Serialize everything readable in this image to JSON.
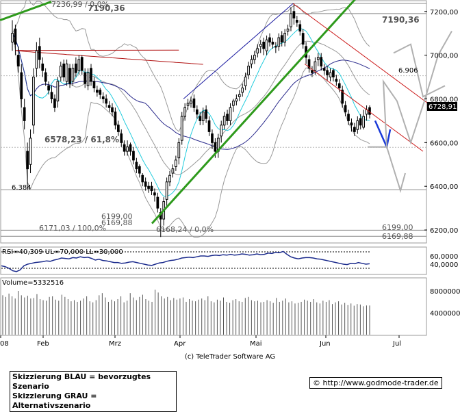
{
  "chart_data": {
    "type": "candlestick",
    "main": {
      "x_months": [
        "08",
        "Feb",
        "Mrz",
        "Apr",
        "Mai",
        "Jun",
        "Jul"
      ],
      "y_ticks": [
        "7200,00",
        "7000,00",
        "6800,00",
        "6600,00",
        "6400,00",
        "6200,00"
      ],
      "ylim": [
        6150,
        7240
      ],
      "last_price_label": "6728,91",
      "levels": [
        {
          "value": 7236.99,
          "label": "7236,99 / 0,0%"
        },
        {
          "value": 7190.36,
          "label": "7190,36"
        },
        {
          "value": 7190.36,
          "label": "7190,36"
        },
        {
          "value": 6906,
          "label": "6.906"
        },
        {
          "value": 6578.23,
          "label": "6578,23 / 61,8%"
        },
        {
          "value": 6384,
          "label": "6.384"
        },
        {
          "value": 6199,
          "label": "6199,00"
        },
        {
          "value": 6171.03,
          "label": "6171,03 / 100,0%"
        },
        {
          "value": 6169.88,
          "label": "6169,88"
        },
        {
          "value": 6168.24,
          "label": "6168,24 / 0,0%"
        },
        {
          "value": 6199,
          "label": "6199,00"
        },
        {
          "value": 6169.88,
          "label": "6169,88"
        }
      ],
      "candles_close": [
        7100,
        7050,
        6950,
        6800,
        6700,
        6480,
        6620,
        6900,
        7020,
        6980,
        6930,
        6880,
        6840,
        6800,
        6760,
        6880,
        6950,
        6900,
        6960,
        6870,
        6940,
        6920,
        6980,
        6930,
        6870,
        6920,
        6880,
        6850,
        6830,
        6820,
        6800,
        6780,
        6760,
        6740,
        6680,
        6650,
        6600,
        6560,
        6580,
        6560,
        6520,
        6480,
        6460,
        6420,
        6400,
        6390,
        6380,
        6360,
        6300,
        6250,
        6330,
        6420,
        6450,
        6480,
        6520,
        6600,
        6720,
        6760,
        6780,
        6790,
        6760,
        6730,
        6700,
        6740,
        6710,
        6650,
        6600,
        6560,
        6620,
        6680,
        6720,
        6700,
        6760,
        6790,
        6800,
        6820,
        6850,
        6900,
        6950,
        6980,
        7000,
        7030,
        7050,
        7030,
        7070,
        7060,
        7050,
        7040,
        7080,
        7060,
        7100,
        7120,
        7190,
        7170,
        7150,
        7110,
        7050,
        6990,
        6940,
        6920,
        6970,
        6990,
        6950,
        6930,
        6910,
        6920,
        6900,
        6880,
        6850,
        6780,
        6740,
        6700,
        6680,
        6650,
        6700,
        6680,
        6720,
        6750,
        6729
      ],
      "candles_open": [
        7060,
        7120,
        7000,
        6920,
        6760,
        6560,
        6500,
        6680,
        6940,
        7040,
        6960,
        6920,
        6860,
        6830,
        6800,
        6790,
        6900,
        6960,
        6880,
        6940,
        6880,
        6960,
        6930,
        6990,
        6920,
        6860,
        6940,
        6880,
        6840,
        6840,
        6810,
        6800,
        6770,
        6760,
        6740,
        6680,
        6640,
        6590,
        6560,
        6590,
        6560,
        6510,
        6490,
        6450,
        6420,
        6400,
        6400,
        6370,
        6350,
        6280,
        6250,
        6340,
        6420,
        6460,
        6490,
        6530,
        6610,
        6720,
        6770,
        6780,
        6800,
        6750,
        6720,
        6700,
        6750,
        6700,
        6640,
        6600,
        6560,
        6630,
        6680,
        6730,
        6700,
        6770,
        6790,
        6810,
        6830,
        6860,
        6910,
        6960,
        6980,
        7010,
        7040,
        7060,
        7020,
        7080,
        7060,
        7040,
        7040,
        7090,
        7060,
        7110,
        7130,
        7200,
        7160,
        7140,
        7100,
        7040,
        6980,
        6930,
        6930,
        6980,
        6990,
        6940,
        6930,
        6900,
        6930,
        6890,
        6870,
        6840,
        6770,
        6730,
        6690,
        6670,
        6660,
        6710,
        6670,
        6730,
        6760
      ],
      "candles_high": [
        7160,
        7140,
        7040,
        6960,
        6800,
        6600,
        6660,
        6940,
        7060,
        7080,
        6990,
        6940,
        6880,
        6860,
        6820,
        6900,
        6970,
        6980,
        6980,
        6960,
        6960,
        6990,
        7000,
        7000,
        6940,
        6940,
        6960,
        6900,
        6860,
        6850,
        6830,
        6820,
        6790,
        6780,
        6760,
        6700,
        6660,
        6610,
        6610,
        6600,
        6580,
        6530,
        6500,
        6460,
        6440,
        6420,
        6420,
        6390,
        6370,
        6300,
        6350,
        6440,
        6470,
        6500,
        6540,
        6620,
        6740,
        6780,
        6800,
        6810,
        6820,
        6770,
        6740,
        6760,
        6770,
        6720,
        6660,
        6620,
        6640,
        6700,
        6740,
        6750,
        6780,
        6800,
        6820,
        6840,
        6870,
        6920,
        6970,
        7000,
        7020,
        7050,
        7070,
        7080,
        7090,
        7100,
        7080,
        7060,
        7100,
        7110,
        7120,
        7140,
        7220,
        7237,
        7180,
        7160,
        7120,
        7060,
        7000,
        6950,
        6990,
        7010,
        7010,
        6960,
        6950,
        6940,
        6940,
        6910,
        6890,
        6860,
        6790,
        6750,
        6710,
        6690,
        6720,
        6730,
        6750,
        6770,
        6770
      ],
      "candles_low": [
        7020,
        7000,
        6920,
        6760,
        6660,
        6384,
        6460,
        6640,
        6900,
        6940,
        6900,
        6860,
        6820,
        6780,
        6740,
        6760,
        6880,
        6880,
        6860,
        6850,
        6860,
        6900,
        6910,
        6910,
        6850,
        6840,
        6860,
        6830,
        6810,
        6800,
        6780,
        6760,
        6740,
        6720,
        6660,
        6630,
        6580,
        6540,
        6540,
        6540,
        6500,
        6460,
        6440,
        6400,
        6380,
        6370,
        6360,
        6330,
        6280,
        6168,
        6220,
        6310,
        6400,
        6440,
        6470,
        6500,
        6590,
        6700,
        6750,
        6760,
        6740,
        6710,
        6680,
        6680,
        6690,
        6630,
        6570,
        6530,
        6530,
        6600,
        6660,
        6680,
        6680,
        6740,
        6770,
        6790,
        6810,
        6840,
        6890,
        6940,
        6960,
        6990,
        7010,
        7000,
        7000,
        7040,
        7030,
        7010,
        7020,
        7040,
        7040,
        7090,
        7110,
        7140,
        7130,
        7090,
        7030,
        6960,
        6920,
        6900,
        6910,
        6950,
        6930,
        6910,
        6880,
        6880,
        6880,
        6860,
        6830,
        6760,
        6720,
        6680,
        6650,
        6630,
        6640,
        6660,
        6660,
        6700,
        6710
      ]
    },
    "rsi": {
      "label": "RSI=40,309 UL=70,000 LL=30,000",
      "y_ticks": [
        "60,0000",
        "40,0000"
      ],
      "upper": 70,
      "lower": 30,
      "ylim": [
        20,
        80
      ],
      "values": [
        36,
        34,
        30,
        24,
        22,
        26,
        36,
        40,
        42,
        44,
        45,
        46,
        48,
        47,
        50,
        52,
        55,
        54,
        53,
        56,
        55,
        58,
        56,
        57,
        54,
        50,
        52,
        49,
        48,
        46,
        44,
        44,
        42,
        43,
        45,
        46,
        44,
        42,
        40,
        38,
        37,
        40,
        43,
        44,
        47,
        49,
        50,
        52,
        55,
        56,
        57,
        56,
        58,
        60,
        60,
        59,
        61,
        62,
        61,
        63,
        62,
        64,
        62,
        63,
        65,
        64,
        62,
        63,
        65,
        63,
        64,
        67,
        66,
        69,
        68,
        71,
        64,
        58,
        55,
        53,
        55,
        56,
        56,
        55,
        53,
        52,
        50,
        48,
        46,
        44,
        42,
        40,
        39,
        42,
        41,
        44,
        42,
        40,
        41
      ]
    },
    "volume": {
      "label": "Volume=5332516",
      "y_ticks": [
        "8000000",
        "4000000"
      ],
      "ylim": [
        0,
        10000000
      ],
      "values": [
        7200000,
        6900000,
        7500000,
        7000000,
        6600000,
        8000000,
        7200000,
        6800000,
        7100000,
        6600000,
        6700000,
        7400000,
        6500000,
        6300000,
        6200000,
        6900000,
        7000000,
        6400000,
        6200000,
        7300000,
        6900000,
        6500000,
        6100000,
        6300000,
        6000000,
        6200000,
        6600000,
        7000000,
        6100000,
        5900000,
        6300000,
        7200000,
        7600000,
        6800000,
        6000000,
        6400000,
        6100000,
        6500000,
        7000000,
        5900000,
        6200000,
        7600000,
        6800000,
        6300000,
        6900000,
        7300000,
        6500000,
        6200000,
        6000000,
        8200000,
        7700000,
        7000000,
        6600000,
        6900000,
        6300000,
        6700000,
        6400000,
        6600000,
        6800000,
        6000000,
        6500000,
        6200000,
        6100000,
        6400000,
        6600000,
        6300000,
        7000000,
        6100000,
        5900000,
        6400000,
        6200000,
        6800000,
        6000000,
        5800000,
        6300000,
        6500000,
        6100000,
        6000000,
        6700000,
        6900000,
        6300000,
        6100000,
        6200000,
        5900000,
        6000000,
        6300000,
        6100000,
        5800000,
        6700000,
        6000000,
        6200000,
        6600000,
        5900000,
        6100000,
        5700000,
        5800000,
        6000000,
        6400000,
        6200000,
        6000000,
        6500000,
        5900000,
        5700000,
        6200000,
        6000000,
        6300000,
        5600000,
        5900000,
        6100000,
        5500000,
        5800000,
        5400000,
        5700000,
        5300000,
        5600000,
        5500000,
        5200000,
        5333000,
        5332516
      ]
    }
  },
  "footer": {
    "copyright": "(c) TeleTrader Software AG",
    "legend_blue": "Skizzierung BLAU = bevorzugtes Szenario",
    "legend_gray": "Skizzierung GRAU = Alternativszenario",
    "url": "http://www.godmode-trader.de",
    "copyright_symbol": "©"
  },
  "colors": {
    "candle": "#000000",
    "trend_green": "#2e9a1c",
    "ma_blue": "#2a2a8c",
    "ma_red": "#b01010",
    "bollinger": "#999999",
    "cyan_ma": "#22ccdd",
    "channel_red": "#cc1a1a",
    "channel_blue": "#1a1aa0",
    "scenario_blue": "#1a3ad8",
    "scenario_gray": "#b0b0b0",
    "rsi_line": "#1a2a8c"
  }
}
